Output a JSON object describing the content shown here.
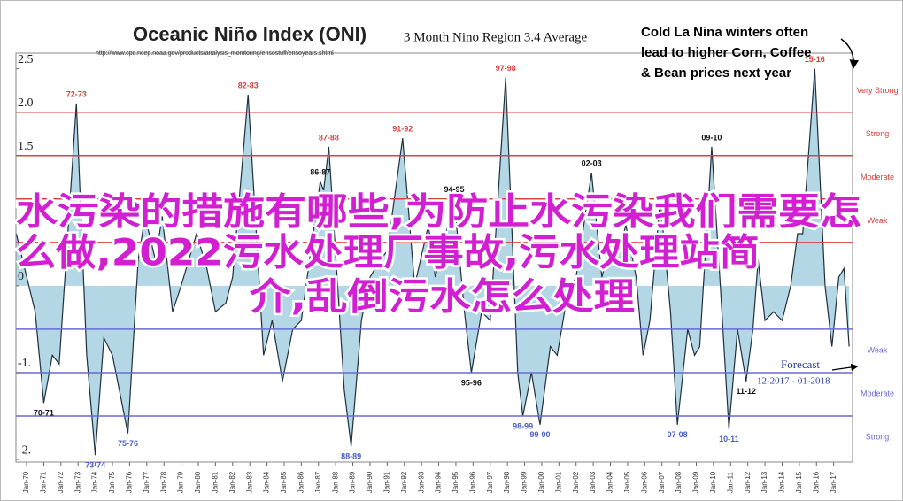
{
  "chart_data": {
    "type": "area",
    "title": "Oceanic Niño Index (ONI)",
    "subtitle": "3 Month Nino Region 3.4 Average",
    "source": "http://www.cpc.ncep.noaa.gov/products/analysis_monitoring/ensostuff/ensoyears.shtml",
    "callout": [
      "Cold La Nina winters often",
      "lead to higher Corn, Coffee",
      "& Bean prices next year"
    ],
    "forecast_note": [
      "Forecast",
      "12-2017 - 01-2018"
    ],
    "overlay_text": [
      "水污染的措施有哪些,为防止水污染我们需要怎",
      "么做,2022污水处理厂事故,污水处理站简",
      "介,乱倒污水怎么处理"
    ],
    "color": "#b4d7e6",
    "line_color": "#1f2f40",
    "xlim": [
      1969.38,
      2018.1
    ],
    "ylim": [
      -2.03,
      2.68
    ],
    "yticks": [
      {
        "value": 2.5,
        "label": "2.5"
      },
      {
        "value": 2,
        "label": "2.0"
      },
      {
        "value": 1.5,
        "label": "1.5"
      },
      0,
      {
        "value": -1,
        "label": "-1."
      },
      {
        "value": -2,
        "label": "-2."
      }
    ],
    "xticks": [
      {
        "value": 1970,
        "label": "Jan-70"
      },
      {
        "value": 1971,
        "label": "Jan-71"
      },
      {
        "value": 1972,
        "label": "Jan-72"
      },
      {
        "value": 1973,
        "label": "Jan-73"
      },
      {
        "value": 1974,
        "label": "Jan-74"
      },
      {
        "value": 1975,
        "label": "Jan-75"
      },
      {
        "value": 1976,
        "label": "Jan-76"
      },
      {
        "value": 1977,
        "label": "Jan-77"
      },
      {
        "value": 1978,
        "label": "Jan-78"
      },
      {
        "value": 1979,
        "label": "Jan-79"
      },
      {
        "value": 1980,
        "label": "Jan-80"
      },
      {
        "value": 1981,
        "label": "Jan-81"
      },
      {
        "value": 1982,
        "label": "Jan-82"
      },
      {
        "value": 1983,
        "label": "Jan-83"
      },
      {
        "value": 1984,
        "label": "Jan-84"
      },
      {
        "value": 1985,
        "label": "Jan-85"
      },
      {
        "value": 1986,
        "label": "Jan-86"
      },
      {
        "value": 1987,
        "label": "Jan-87"
      },
      {
        "value": 1988,
        "label": "Jan-88"
      },
      {
        "value": 1989,
        "label": "Jan-89"
      },
      {
        "value": 1990,
        "label": "Jan-90"
      },
      {
        "value": 1991,
        "label": "Jan-91"
      },
      {
        "value": 1992,
        "label": "Jan-92"
      },
      {
        "value": 1993,
        "label": "Jan-93"
      },
      {
        "value": 1994,
        "label": "Jan-94"
      },
      {
        "value": 1995,
        "label": "Jan-95"
      },
      {
        "value": 1996,
        "label": "Jan-96"
      },
      {
        "value": 1997,
        "label": "Jan-97"
      },
      {
        "value": 1998,
        "label": "Jan-98"
      },
      {
        "value": 1999,
        "label": "Jan-99"
      },
      {
        "value": 2000,
        "label": "Jan-00"
      },
      {
        "value": 2001,
        "label": "Jan-01"
      },
      {
        "value": 2002,
        "label": "Jan-02"
      },
      {
        "value": 2003,
        "label": "Jan-03"
      },
      {
        "value": 2004,
        "label": "Jan-04"
      },
      {
        "value": 2005,
        "label": "Jan-05"
      },
      {
        "value": 2006,
        "label": "Jan-06"
      },
      {
        "value": 2007,
        "label": "Jan-07"
      },
      {
        "value": 2008,
        "label": "Jan-08"
      },
      {
        "value": 2009,
        "label": "Jan-09"
      },
      {
        "value": 2010,
        "label": "Jan-10"
      },
      {
        "value": 2011,
        "label": "Jan-11"
      },
      {
        "value": 2012,
        "label": "Jan-12"
      },
      {
        "value": 2013,
        "label": "Jan-13"
      },
      {
        "value": 2014,
        "label": "Jan-14"
      },
      {
        "value": 2015,
        "label": "Jan-15"
      },
      {
        "value": 2016,
        "label": "Jan-16"
      },
      {
        "value": 2017,
        "label": "Jan-17"
      }
    ],
    "thresholds": [
      {
        "value": 2,
        "label": "Very Strong",
        "color": "#d9433f",
        "side": "warm"
      },
      {
        "value": 1.5,
        "label": "Strong",
        "color": "#d9433f",
        "side": "warm"
      },
      {
        "value": 1,
        "label": "Moderate",
        "color": "#d9433f",
        "side": "warm"
      },
      {
        "value": 0.5,
        "label": "Weak",
        "color": "#d9433f",
        "side": "warm"
      },
      {
        "value": -0.5,
        "label": "Weak",
        "color": "#6a6ad8",
        "side": "cold"
      },
      {
        "value": -1,
        "label": "Moderate",
        "color": "#6a6ad8",
        "side": "cold"
      },
      {
        "value": -1.5,
        "label": "Strong",
        "color": "#6a6ad8",
        "side": "cold"
      }
    ],
    "x": [
      1969.4,
      1970.5,
      1971.0,
      1971.5,
      1971.9,
      1972.9,
      1973.5,
      1974.0,
      1974.5,
      1975.0,
      1975.9,
      1976.5,
      1976.9,
      1977.5,
      1977.9,
      1978.5,
      1979.0,
      1979.9,
      1980.5,
      1981.0,
      1981.6,
      1982.0,
      1982.9,
      1983.8,
      1984.3,
      1984.9,
      1985.5,
      1986.0,
      1987.1,
      1987.3,
      1987.6,
      1988.5,
      1988.9,
      1989.5,
      1990.0,
      1990.6,
      1991.0,
      1991.9,
      1992.6,
      1993.4,
      1993.8,
      1994.9,
      1995.5,
      1995.9,
      1996.5,
      1997.0,
      1997.9,
      1998.6,
      1998.9,
      1999.4,
      1999.9,
      2000.5,
      2000.9,
      2001.5,
      2002.0,
      2002.9,
      2003.5,
      2003.9,
      2004.5,
      2004.9,
      2005.5,
      2005.9,
      2006.3,
      2006.9,
      2007.5,
      2007.9,
      2008.5,
      2008.9,
      2009.2,
      2009.9,
      2010.4,
      2010.9,
      2011.4,
      2011.9,
      2012.3,
      2012.6,
      2013.0,
      2013.5,
      2014.0,
      2014.5,
      2014.9,
      2015.2,
      2015.9,
      2016.5,
      2016.9,
      2017.3,
      2017.6,
      2017.9
    ],
    "values": [
      0.6,
      -0.3,
      -1.35,
      -0.8,
      -0.9,
      2.1,
      -0.8,
      -1.95,
      -0.6,
      -0.8,
      -1.7,
      0.3,
      0.8,
      0.3,
      0.8,
      -0.3,
      0,
      0.6,
      0.2,
      -0.3,
      -0.2,
      0.1,
      2.2,
      -0.8,
      -0.4,
      -1.1,
      -0.5,
      -0.4,
      1.2,
      1.1,
      1.6,
      -1.2,
      -1.85,
      -0.4,
      0.1,
      0.3,
      0.4,
      1.7,
      0,
      0.7,
      0.1,
      1.0,
      -0.3,
      -1.0,
      -0.3,
      -0.4,
      2.4,
      -1.0,
      -1.5,
      -1.0,
      -1.6,
      -0.7,
      -0.8,
      -0.1,
      0.1,
      1.3,
      0.1,
      0.4,
      0.4,
      0.7,
      0.1,
      -0.8,
      -0.4,
      1.0,
      -0.3,
      -1.6,
      -0.5,
      -0.8,
      -0.7,
      1.6,
      0,
      -1.65,
      -0.5,
      -1.1,
      -0.5,
      0.3,
      -0.4,
      -0.3,
      -0.4,
      0,
      0.6,
      0.6,
      2.5,
      0,
      -0.7,
      0.1,
      0.2,
      -0.7
    ],
    "annotations": [
      {
        "text": "72-73",
        "x": 1972.9,
        "y": 2.1,
        "color": "#d9433f"
      },
      {
        "text": "70-71",
        "x": 1971.0,
        "y": -1.35,
        "color": "#111"
      },
      {
        "text": "73-74",
        "x": 1974.0,
        "y": -1.95,
        "color": "#4a5ec8"
      },
      {
        "text": "75-76",
        "x": 1975.9,
        "y": -1.7,
        "color": "#4a5ec8"
      },
      {
        "text": "82-83",
        "x": 1982.9,
        "y": 2.2,
        "color": "#d9433f"
      },
      {
        "text": "86-87",
        "x": 1987.1,
        "y": 1.2,
        "color": "#111"
      },
      {
        "text": "87-88",
        "x": 1987.6,
        "y": 1.6,
        "color": "#d9433f"
      },
      {
        "text": "88-89",
        "x": 1988.9,
        "y": -1.85,
        "color": "#4a5ec8"
      },
      {
        "text": "91-92",
        "x": 1991.9,
        "y": 1.7,
        "color": "#d9433f"
      },
      {
        "text": "94-95",
        "x": 1994.9,
        "y": 1.0,
        "color": "#111"
      },
      {
        "text": "95-96",
        "x": 1995.9,
        "y": -1.0,
        "color": "#111"
      },
      {
        "text": "97-98",
        "x": 1997.9,
        "y": 2.4,
        "color": "#d9433f"
      },
      {
        "text": "98-99",
        "x": 1998.9,
        "y": -1.5,
        "color": "#4a5ec8"
      },
      {
        "text": "99-00",
        "x": 1999.9,
        "y": -1.6,
        "color": "#4a5ec8"
      },
      {
        "text": "02-03",
        "x": 2002.9,
        "y": 1.3,
        "color": "#111"
      },
      {
        "text": "07-08",
        "x": 2007.9,
        "y": -1.6,
        "color": "#4a5ec8"
      },
      {
        "text": "09-10",
        "x": 2009.9,
        "y": 1.6,
        "color": "#111"
      },
      {
        "text": "10-11",
        "x": 2010.9,
        "y": -1.65,
        "color": "#4a5ec8"
      },
      {
        "text": "11-12",
        "x": 2011.9,
        "y": -1.1,
        "color": "#111"
      },
      {
        "text": "15-16",
        "x": 2015.9,
        "y": 2.5,
        "color": "#d9433f"
      }
    ]
  }
}
